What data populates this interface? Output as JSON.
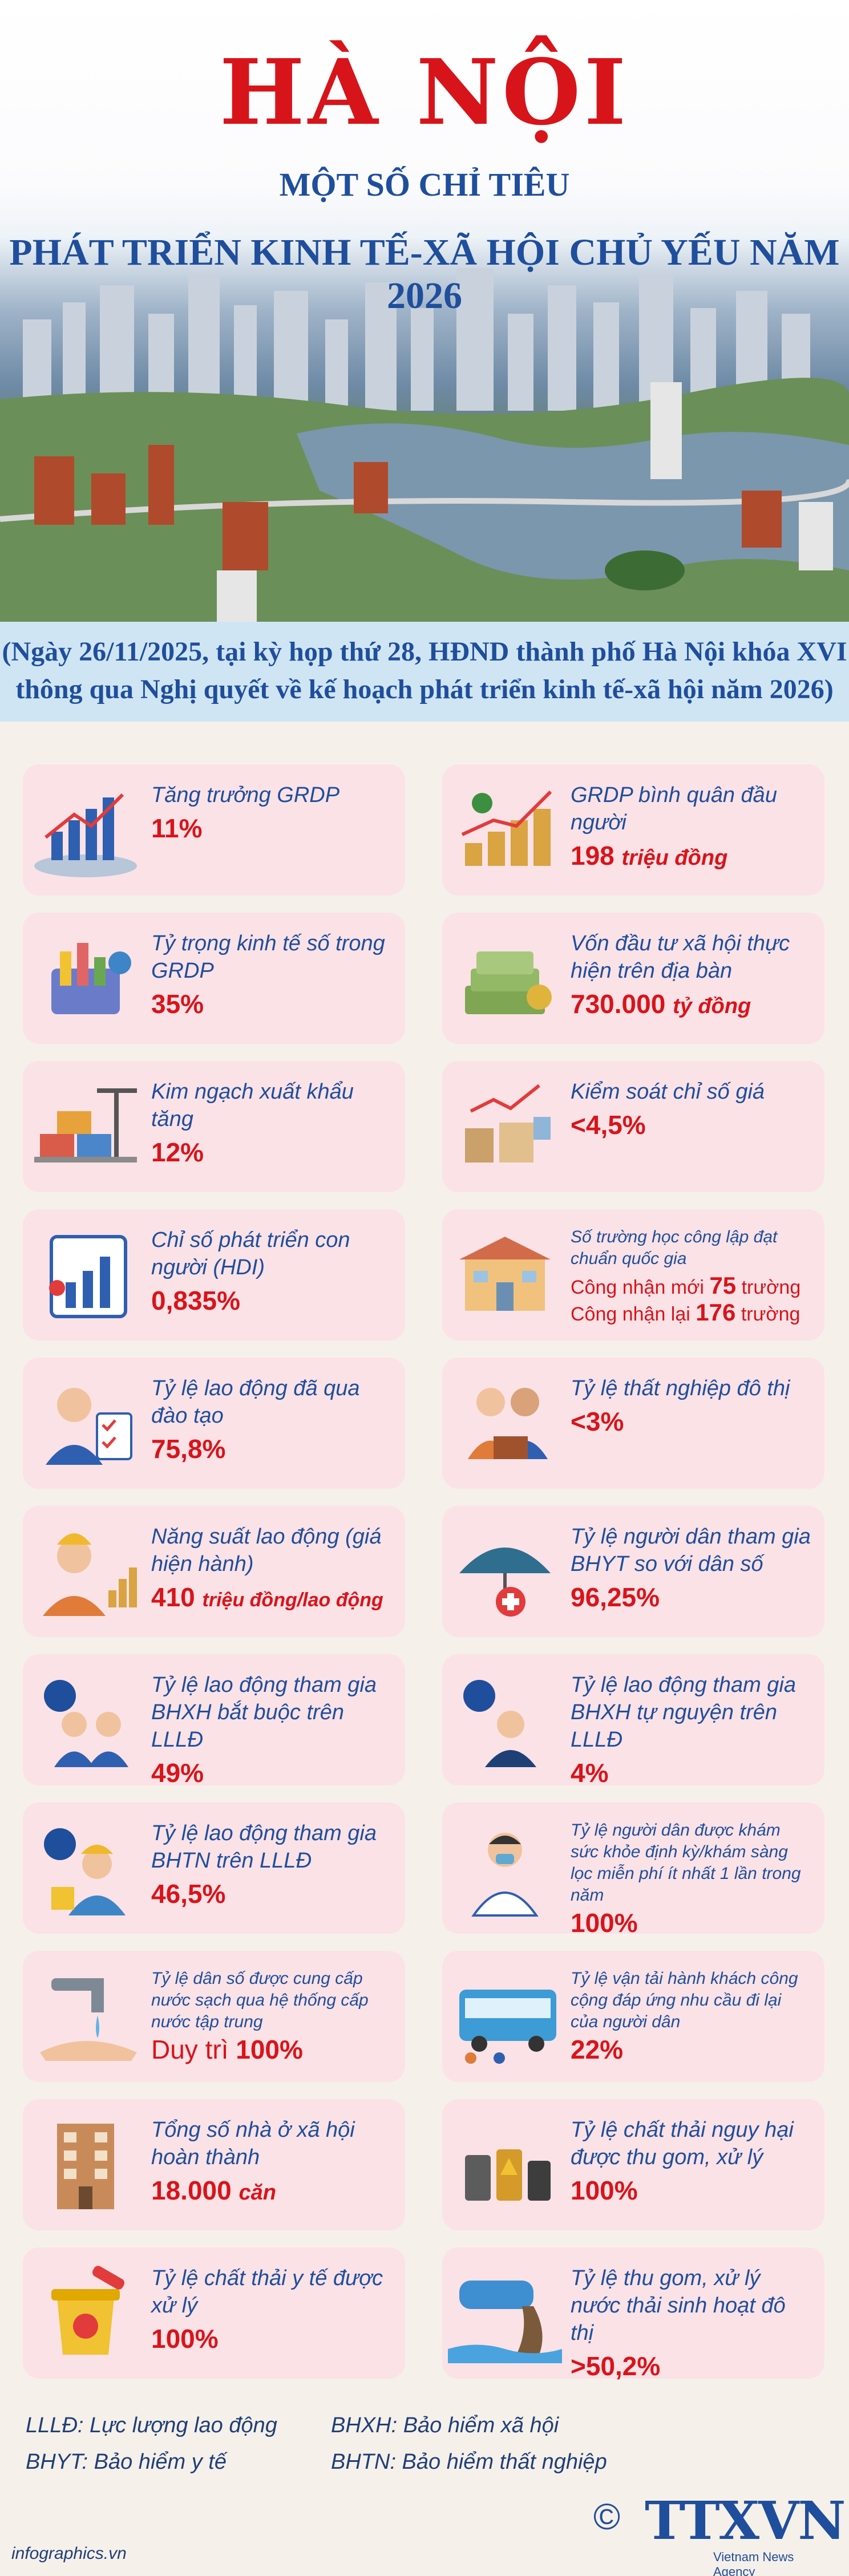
{
  "header": {
    "title": "HÀ NỘI",
    "subtitle_1": "MỘT SỐ CHỈ TIÊU",
    "subtitle_2": "PHÁT TRIỂN KINH TẾ-XÃ HỘI CHỦ YẾU NĂM 2026"
  },
  "intro": {
    "line_1": "(Ngày 26/11/2025, tại kỳ họp thứ 28, HĐND thành phố Hà Nội khóa XVI",
    "line_2": "thông qua Nghị quyết về kế hoạch phát triển kinh tế-xã hội năm 2026)"
  },
  "indicators": [
    {
      "label": "Tăng trưởng GRDP",
      "value": "11%",
      "unit": "",
      "icon": "grdp-chart-icon"
    },
    {
      "label": "GRDP bình quân đầu người",
      "value": "198",
      "unit": "triệu đồng",
      "icon": "coins-growth-icon"
    },
    {
      "label": "Tỷ trọng kinh tế số trong GRDP",
      "value": "35%",
      "unit": "",
      "icon": "digital-economy-icon"
    },
    {
      "label": "Vốn đầu tư xã hội thực hiện trên địa bàn",
      "value": "730.000",
      "unit": "tỷ đồng",
      "icon": "money-stack-icon"
    },
    {
      "label": "Kim ngạch xuất khẩu tăng",
      "value": "12%",
      "unit": "",
      "icon": "container-port-icon"
    },
    {
      "label": "Kiểm soát chỉ số giá",
      "value": "<4,5%",
      "unit": "",
      "icon": "price-index-icon"
    },
    {
      "label": "Chỉ số phát triển con người (HDI)",
      "value": "0,835%",
      "unit": "",
      "icon": "hdi-chart-icon"
    },
    {
      "label": "Số trường học công lập đạt chuẩn quốc gia",
      "line_1": "Công nhận mới",
      "value_1": "75",
      "unit_1": "trường",
      "line_2": "Công nhận lại",
      "value_2": "176",
      "unit_2": "trường",
      "icon": "school-building-icon"
    },
    {
      "label": "Tỷ lệ lao động đã qua đào tạo",
      "value": "75,8%",
      "unit": "",
      "icon": "trained-worker-icon"
    },
    {
      "label": "Tỷ lệ thất nghiệp đô thị",
      "value": "<3%",
      "unit": "",
      "icon": "unemployment-icon"
    },
    {
      "label": "Năng suất lao động (giá hiện hành)",
      "value": "410",
      "unit": "triệu đồng/lao động",
      "icon": "labor-productivity-icon"
    },
    {
      "label": "Tỷ lệ người dân tham gia BHYT so với dân số",
      "value": "96,25%",
      "unit": "",
      "icon": "health-umbrella-icon"
    },
    {
      "label": "Tỷ lệ lao động tham gia BHXH bắt buộc trên LLLĐ",
      "value": "49%",
      "unit": "",
      "icon": "social-insurance-icon"
    },
    {
      "label": "Tỷ lệ lao động tham gia BHXH tự nguyện trên LLLĐ",
      "value": "4%",
      "unit": "",
      "icon": "voluntary-insurance-icon"
    },
    {
      "label": "Tỷ lệ lao động tham gia BHTN trên LLLĐ",
      "value": "46,5%",
      "unit": "",
      "icon": "unemployment-insurance-icon"
    },
    {
      "label": "Tỷ lệ người dân được khám sức khỏe định kỳ/khám sàng lọc miễn phí ít nhất 1 lần trong năm",
      "value": "100%",
      "unit": "",
      "icon": "doctor-icon"
    },
    {
      "label": "Tỷ lệ dân số được cung cấp nước sạch qua hệ thống cấp nước tập trung",
      "value_prefix": "Duy trì",
      "value": "100%",
      "unit": "",
      "icon": "water-tap-icon"
    },
    {
      "label": "Tỷ lệ vận tải hành khách công cộng đáp ứng nhu cầu đi lại của người dân",
      "value": "22%",
      "unit": "",
      "icon": "public-bus-icon"
    },
    {
      "label": "Tổng số nhà ở xã hội hoàn thành",
      "value": "18.000",
      "unit": "căn",
      "icon": "apartment-building-icon"
    },
    {
      "label": "Tỷ lệ chất thải nguy hại được thu gom, xử lý",
      "value": "100%",
      "unit": "",
      "icon": "hazardous-waste-icon"
    },
    {
      "label": "Tỷ lệ chất thải y tế được xử lý",
      "value": "100%",
      "unit": "",
      "icon": "medical-waste-icon"
    },
    {
      "label": "Tỷ lệ thu gom, xử lý nước thải sinh hoạt đô thị",
      "value": ">50,2%",
      "unit": "",
      "icon": "wastewater-pipe-icon"
    }
  ],
  "legend": {
    "lllD": "LLLĐ: Lực lượng lao động",
    "bhyt": "BHYT: Bảo hiểm y tế",
    "bhxh": "BHXH: Bảo hiểm xã hội",
    "bhtn": "BHTN: Bảo hiểm thất nghiệp"
  },
  "footer": {
    "source": "infographics.vn",
    "logo_text": "TTXVN",
    "agency": "Vietnam News Agency",
    "copyright": "©"
  },
  "colors": {
    "title_red": "#d8141b",
    "heading_blue": "#1f4e9c",
    "card_pink": "#fbe2e6",
    "intro_blue": "#cfe5f4"
  }
}
